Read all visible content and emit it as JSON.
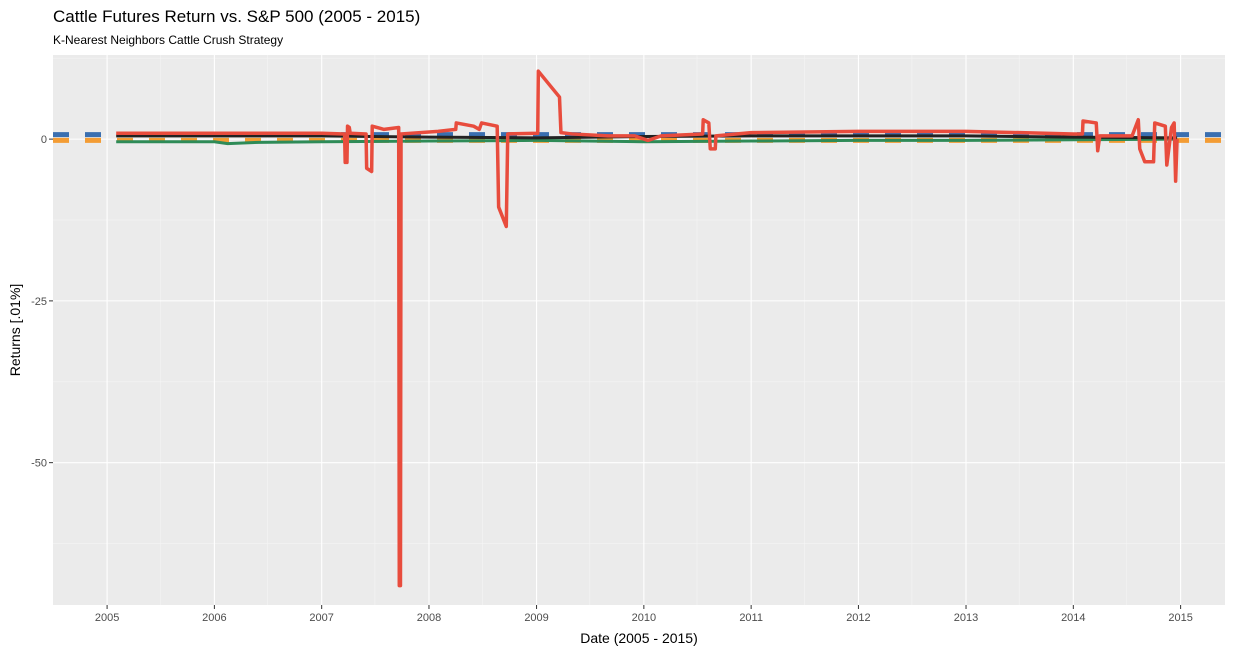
{
  "chart_data": {
    "type": "line",
    "title": "Cattle Futures Return vs. S&P 500 (2005 - 2015)",
    "subtitle": "K-Nearest Neighbors Cattle Crush Strategy",
    "xlabel": "Date (2005 - 2015)",
    "ylabel": "Returns [.01%]",
    "xlim": [
      "2004-07-01",
      "2015-06-01"
    ],
    "ylim": [
      -72,
      13
    ],
    "x_ticks": [
      "2005",
      "2006",
      "2007",
      "2008",
      "2009",
      "2010",
      "2011",
      "2012",
      "2013",
      "2014",
      "2015"
    ],
    "y_ticks": [
      0,
      -25,
      -50
    ],
    "grid": true,
    "legend": "none",
    "series": [
      {
        "color": "#e84c3d",
        "style": "solid",
        "points": [
          [
            "2005-02-01",
            0.9
          ],
          [
            "2007-01-01",
            0.9
          ],
          [
            "2007-03-20",
            0.8
          ],
          [
            "2007-03-22",
            -3.6
          ],
          [
            "2007-03-28",
            -3.6
          ],
          [
            "2007-03-30",
            2.0
          ],
          [
            "2007-04-05",
            1.8
          ],
          [
            "2007-04-08",
            0.9
          ],
          [
            "2007-06-01",
            0.8
          ],
          [
            "2007-06-03",
            -4.5
          ],
          [
            "2007-06-20",
            -5.0
          ],
          [
            "2007-06-22",
            2.0
          ],
          [
            "2007-08-01",
            1.5
          ],
          [
            "2007-09-20",
            1.8
          ],
          [
            "2007-09-22",
            -69.0
          ],
          [
            "2007-09-26",
            -69.0
          ],
          [
            "2007-09-28",
            0.8
          ],
          [
            "2008-02-01",
            1.2
          ],
          [
            "2008-04-01",
            1.5
          ],
          [
            "2008-04-03",
            2.5
          ],
          [
            "2008-06-01",
            2.0
          ],
          [
            "2008-06-20",
            1.5
          ],
          [
            "2008-06-28",
            2.5
          ],
          [
            "2008-08-20",
            2.0
          ],
          [
            "2008-08-25",
            -10.5
          ],
          [
            "2008-09-20",
            -13.5
          ],
          [
            "2008-09-25",
            0.8
          ],
          [
            "2009-01-05",
            0.9
          ],
          [
            "2009-01-07",
            10.5
          ],
          [
            "2009-03-20",
            6.5
          ],
          [
            "2009-03-25",
            1.0
          ],
          [
            "2009-05-01",
            0.8
          ],
          [
            "2009-09-01",
            0.5
          ],
          [
            "2009-12-01",
            0.5
          ],
          [
            "2010-01-15",
            -0.2
          ],
          [
            "2010-03-01",
            0.5
          ],
          [
            "2010-07-20",
            0.8
          ],
          [
            "2010-07-22",
            3.0
          ],
          [
            "2010-08-10",
            2.5
          ],
          [
            "2010-08-15",
            -1.5
          ],
          [
            "2010-09-01",
            -1.5
          ],
          [
            "2010-09-03",
            0.5
          ],
          [
            "2011-01-01",
            1.0
          ],
          [
            "2012-01-01",
            1.2
          ],
          [
            "2013-01-01",
            1.2
          ],
          [
            "2014-01-01",
            0.8
          ],
          [
            "2014-02-01",
            0.8
          ],
          [
            "2014-02-03",
            2.8
          ],
          [
            "2014-03-20",
            2.5
          ],
          [
            "2014-03-25",
            -1.8
          ],
          [
            "2014-04-01",
            0.5
          ],
          [
            "2014-07-20",
            0.5
          ],
          [
            "2014-08-10",
            3.0
          ],
          [
            "2014-08-15",
            -1.5
          ],
          [
            "2014-09-01",
            -3.5
          ],
          [
            "2014-10-01",
            -3.5
          ],
          [
            "2014-10-05",
            2.5
          ],
          [
            "2014-11-10",
            2.0
          ],
          [
            "2014-11-15",
            -4.0
          ],
          [
            "2014-12-01",
            1.8
          ],
          [
            "2014-12-10",
            2.5
          ],
          [
            "2014-12-15",
            -6.5
          ],
          [
            "2014-12-20",
            0.0
          ]
        ]
      },
      {
        "color": "#2e8b57",
        "style": "solid",
        "points": [
          [
            "2005-02-01",
            -0.4
          ],
          [
            "2006-01-01",
            -0.4
          ],
          [
            "2006-02-15",
            -0.7
          ],
          [
            "2006-06-01",
            -0.5
          ],
          [
            "2007-01-01",
            -0.4
          ],
          [
            "2008-01-01",
            -0.3
          ],
          [
            "2009-01-01",
            -0.2
          ],
          [
            "2010-01-01",
            -0.4
          ],
          [
            "2011-01-01",
            -0.3
          ],
          [
            "2012-01-01",
            -0.2
          ],
          [
            "2013-01-01",
            -0.2
          ],
          [
            "2014-01-01",
            -0.1
          ],
          [
            "2014-12-20",
            0.0
          ]
        ]
      },
      {
        "color": "#222222",
        "style": "solid",
        "points": [
          [
            "2005-02-01",
            0.5
          ],
          [
            "2006-01-01",
            0.5
          ],
          [
            "2007-01-01",
            0.5
          ],
          [
            "2008-01-01",
            0.3
          ],
          [
            "2009-01-01",
            0.2
          ],
          [
            "2010-01-01",
            0.4
          ],
          [
            "2011-01-01",
            0.5
          ],
          [
            "2012-01-01",
            0.5
          ],
          [
            "2013-01-01",
            0.5
          ],
          [
            "2014-01-01",
            0.3
          ],
          [
            "2014-12-20",
            0.2
          ]
        ]
      },
      {
        "color": "#3a6fb0",
        "style": "dashed",
        "points": [
          [
            "2004-07-01",
            0.7
          ],
          [
            "2015-06-01",
            0.7
          ]
        ]
      },
      {
        "color": "#f39c34",
        "style": "dashed",
        "points": [
          [
            "2004-07-01",
            -0.2
          ],
          [
            "2015-06-01",
            -0.2
          ]
        ]
      }
    ]
  }
}
